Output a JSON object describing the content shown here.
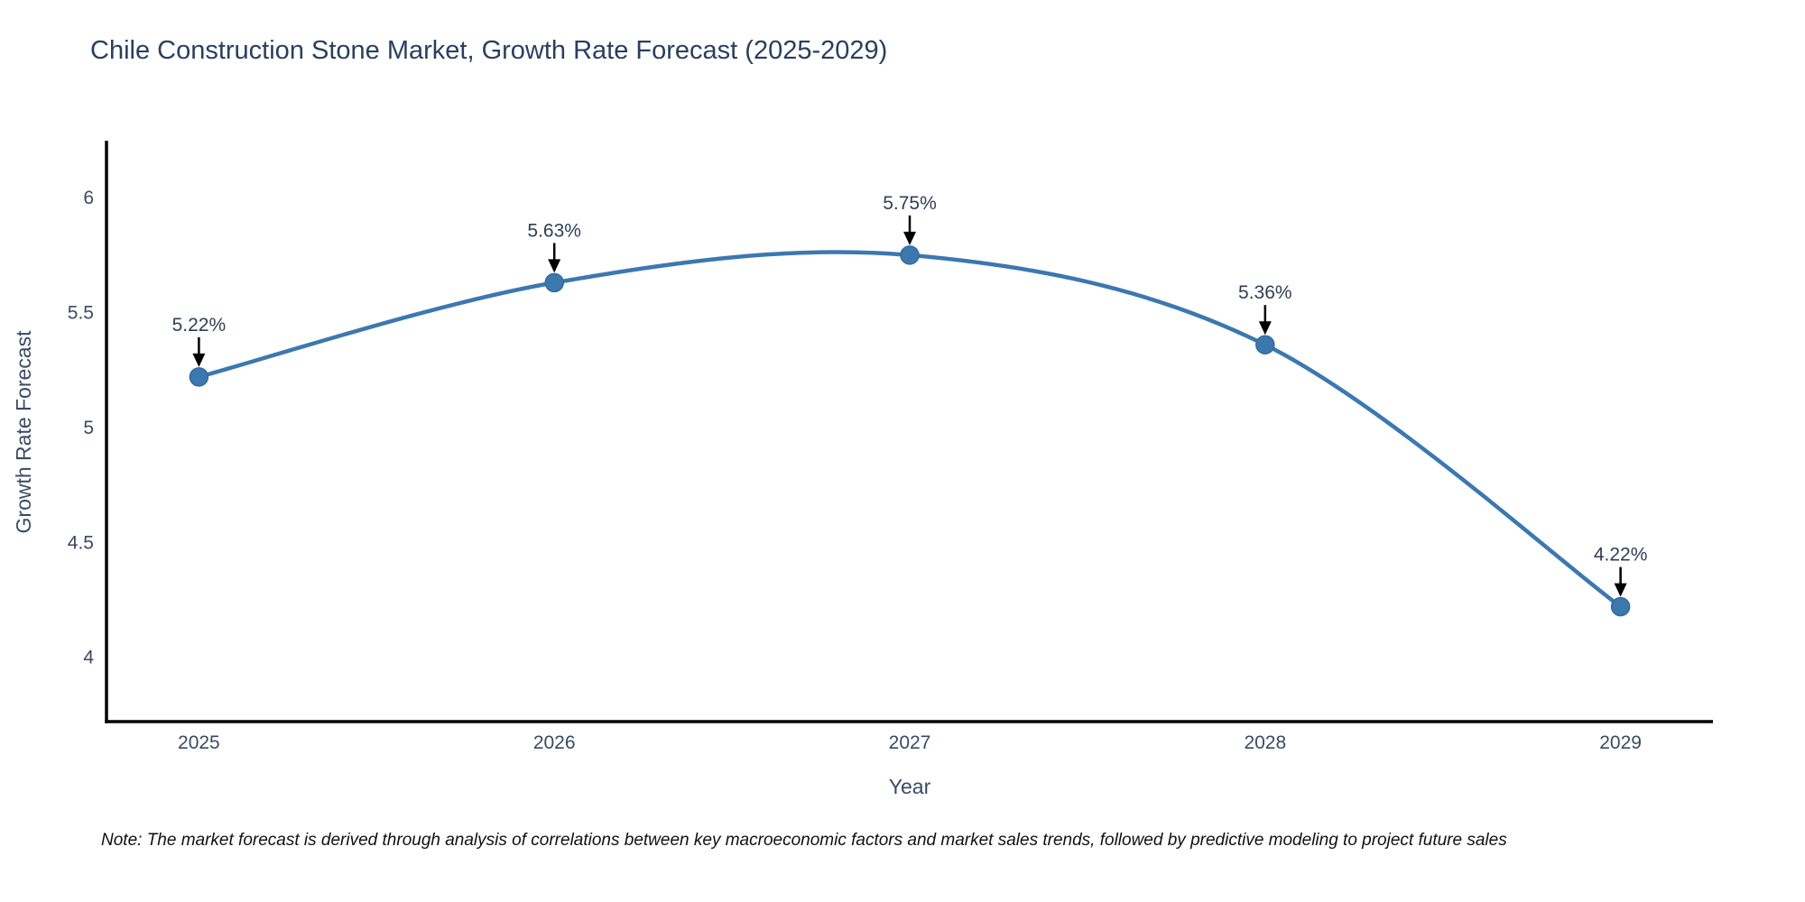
{
  "title": "Chile Construction Stone Market, Growth Rate Forecast (2025-2029)",
  "note": "Note: The market forecast is derived through analysis of correlations between key macroeconomic factors and market sales trends, followed by predictive modeling to project future sales",
  "chart_data": {
    "type": "line",
    "title": "Chile Construction Stone Market, Growth Rate Forecast (2025-2029)",
    "xlabel": "Year",
    "ylabel": "Growth Rate Forecast",
    "x": [
      2025,
      2026,
      2027,
      2028,
      2029
    ],
    "categories": [
      "2025",
      "2026",
      "2027",
      "2028",
      "2029"
    ],
    "series": [
      {
        "name": "Growth Rate Forecast",
        "values": [
          5.22,
          5.63,
          5.75,
          5.36,
          4.22
        ]
      }
    ],
    "point_labels": [
      "5.22%",
      "5.63%",
      "5.75%",
      "5.36%",
      "4.22%"
    ],
    "xtick_labels": [
      "2025",
      "2026",
      "2027",
      "2028",
      "2029"
    ],
    "ytick_values": [
      4,
      4.5,
      5,
      5.5,
      6
    ],
    "ytick_labels": [
      "4",
      "4.5",
      "5",
      "5.5",
      "6"
    ],
    "xlim": [
      2024.74,
      2029.26
    ],
    "ylim": [
      3.72,
      6.24
    ],
    "grid": false,
    "legend_position": "none",
    "line_shape": "spline",
    "annotations_have_arrows": true,
    "colors": {
      "line": "#3c78b0",
      "marker_fill": "#3c78b0",
      "marker_edge": "#356b9c",
      "arrow": "#000000",
      "axis": "#000000",
      "title_text": "#2a3f5f",
      "tick_text": "#3a4a63",
      "note_text": "#111111",
      "background": "#ffffff"
    }
  }
}
